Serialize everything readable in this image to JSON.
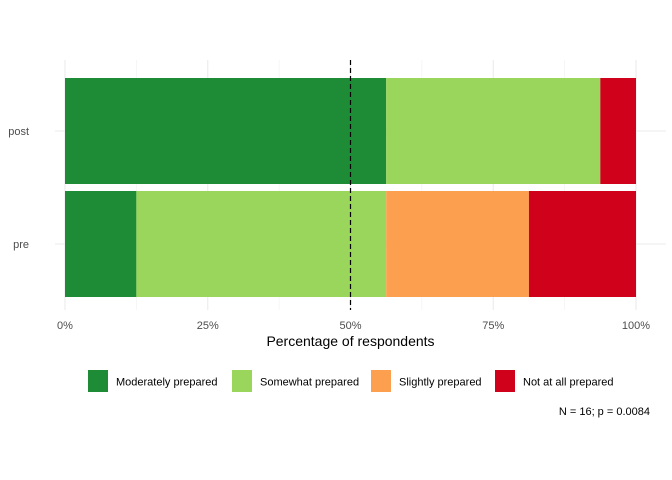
{
  "chart_data": {
    "type": "bar",
    "orientation": "horizontal",
    "stacked": "percent",
    "categories": [
      "post",
      "pre"
    ],
    "series": [
      {
        "name": "Moderately prepared",
        "color": "#1e8c36",
        "values": [
          56.25,
          12.5
        ]
      },
      {
        "name": "Somewhat prepared",
        "color": "#9ad55c",
        "values": [
          37.5,
          43.75
        ]
      },
      {
        "name": "Slightly prepared",
        "color": "#fca050",
        "values": [
          0,
          25
        ]
      },
      {
        "name": "Not at all prepared",
        "color": "#d0011b",
        "values": [
          6.25,
          18.75
        ]
      }
    ],
    "xlabel": "Percentage of respondents",
    "ylabel": "",
    "xlim": [
      0,
      100
    ],
    "xticks": [
      0,
      25,
      50,
      75,
      100
    ],
    "xtick_labels": [
      "0%",
      "25%",
      "50%",
      "75%",
      "100%"
    ],
    "reference_line": {
      "x": 50,
      "style": "dashed"
    },
    "grid": true,
    "legend_position": "bottom",
    "caption": "N = 16; p = 0.0084"
  }
}
